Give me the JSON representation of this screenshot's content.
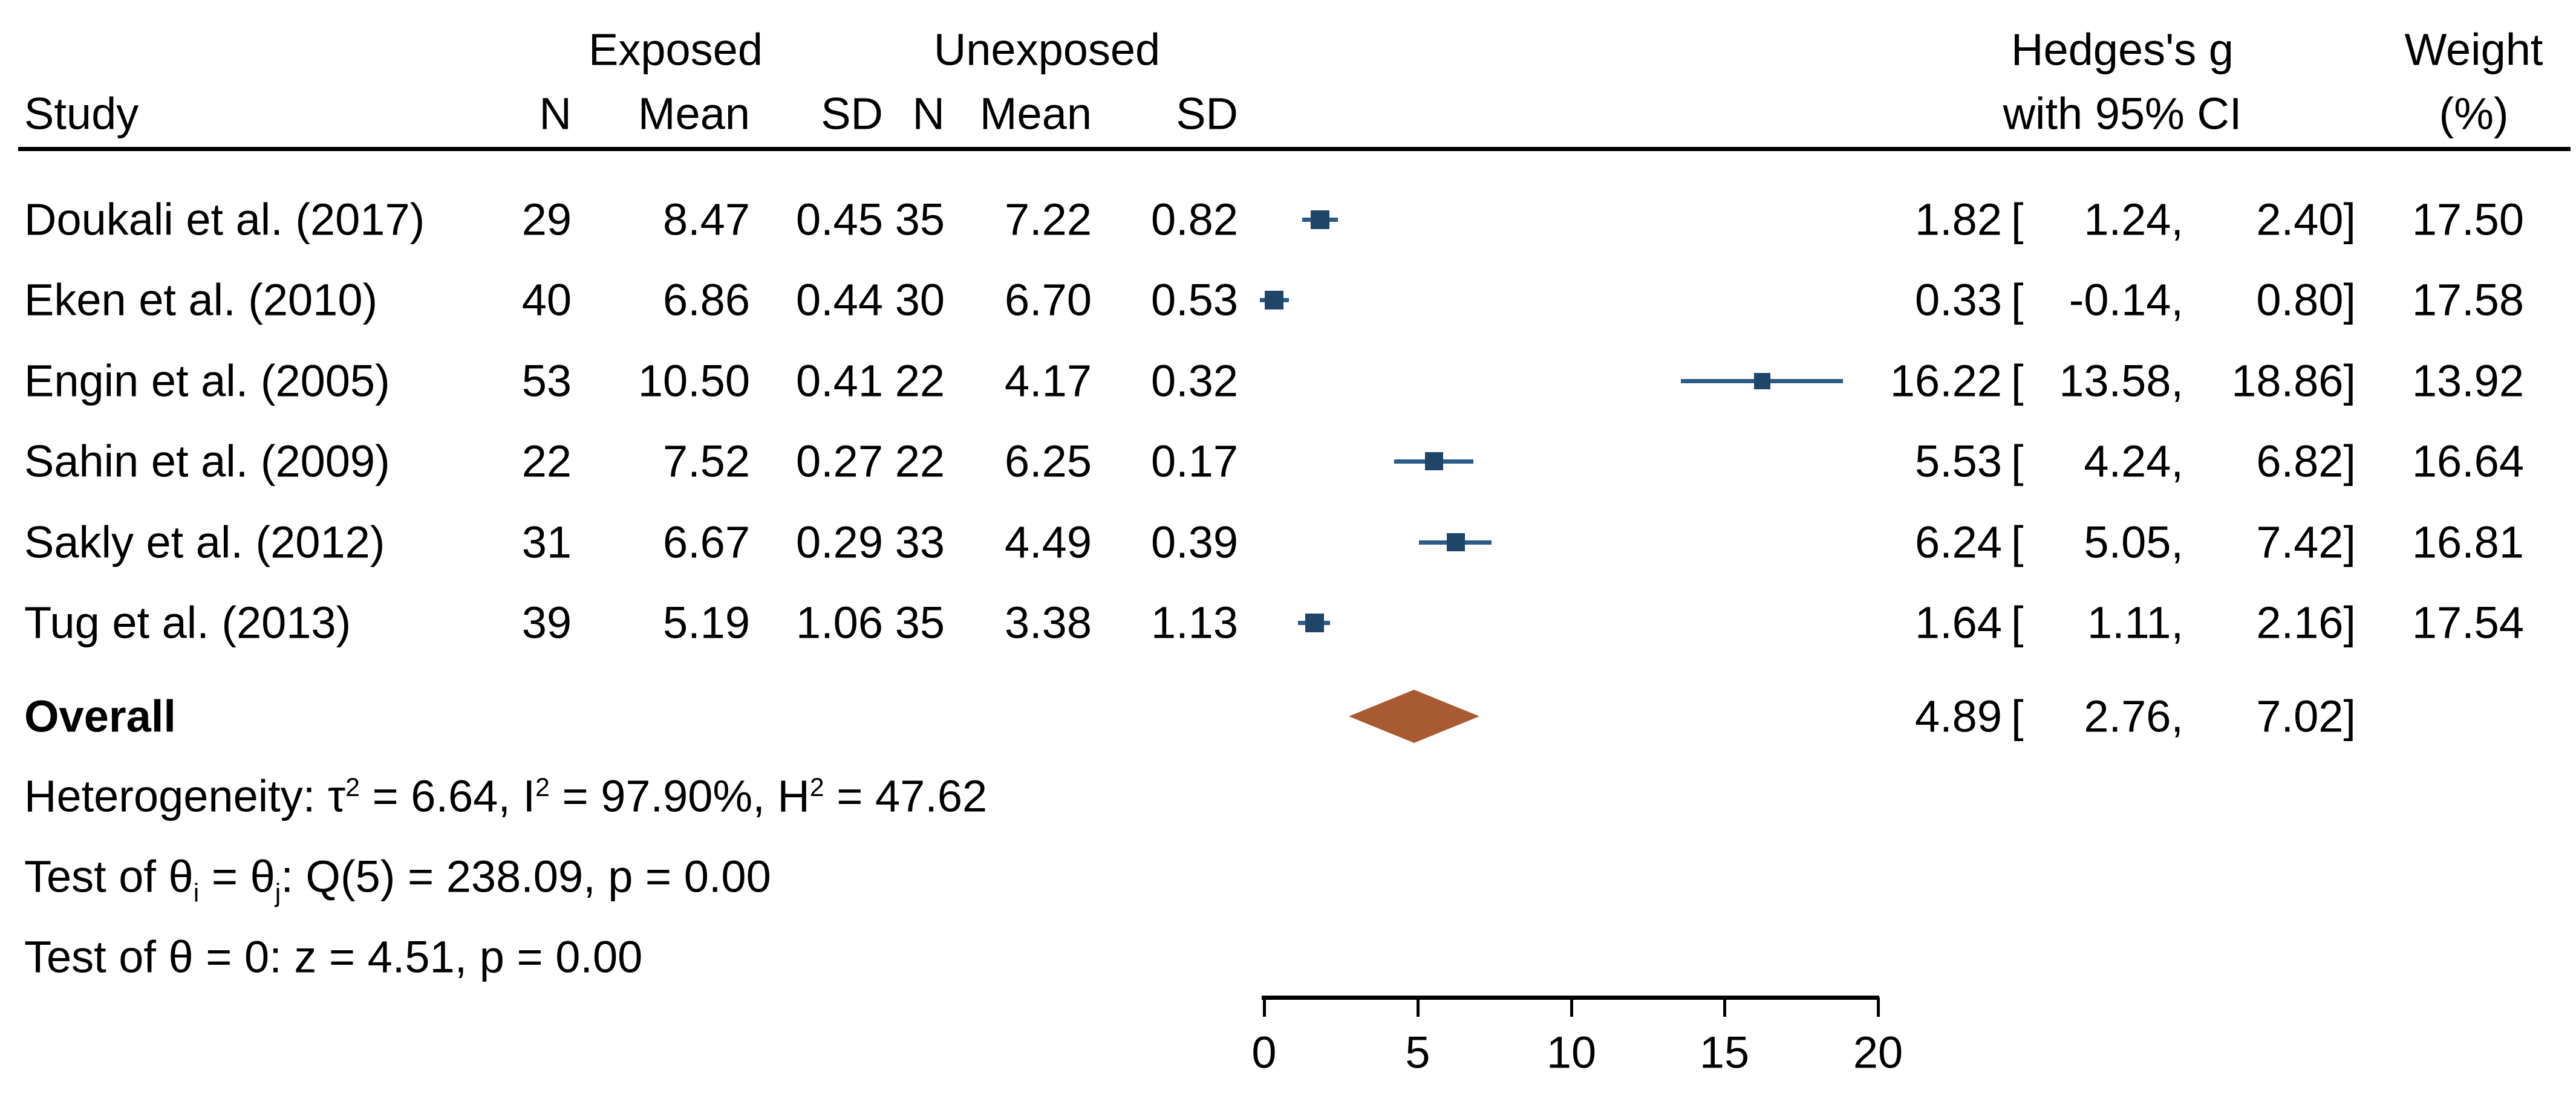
{
  "chart_data": {
    "type": "forest",
    "effect_measure": "Hedges's g",
    "xlim": [
      0,
      20
    ],
    "xticks": [
      "0",
      "5",
      "10",
      "15",
      "20"
    ],
    "ci_open_bracket": "[",
    "ci_separator": ",",
    "ci_close_bracket": "]",
    "columns": {
      "study": "Study",
      "group1": "Exposed",
      "group2": "Unexposed",
      "n": "N",
      "mean": "Mean",
      "sd": "SD",
      "effect_line1": "Hedges's g",
      "effect_line2": "with 95% CI",
      "weight_line1": "Weight",
      "weight_line2": "(%)"
    },
    "studies": [
      {
        "label": "Doukali et al. (2017)",
        "n1": 29,
        "mean1": 8.47,
        "sd1": 0.45,
        "n2": 35,
        "mean2": 7.22,
        "sd2": 0.82,
        "es": 1.82,
        "lo": 1.24,
        "hi": 2.4,
        "weight": 17.5
      },
      {
        "label": "Eken et al. (2010)",
        "n1": 40,
        "mean1": 6.86,
        "sd1": 0.44,
        "n2": 30,
        "mean2": 6.7,
        "sd2": 0.53,
        "es": 0.33,
        "lo": -0.14,
        "hi": 0.8,
        "weight": 17.58
      },
      {
        "label": "Engin et al. (2005)",
        "n1": 53,
        "mean1": 10.5,
        "sd1": 0.41,
        "n2": 22,
        "mean2": 4.17,
        "sd2": 0.32,
        "es": 16.22,
        "lo": 13.58,
        "hi": 18.86,
        "weight": 13.92
      },
      {
        "label": "Sahin et al. (2009)",
        "n1": 22,
        "mean1": 7.52,
        "sd1": 0.27,
        "n2": 22,
        "mean2": 6.25,
        "sd2": 0.17,
        "es": 5.53,
        "lo": 4.24,
        "hi": 6.82,
        "weight": 16.64
      },
      {
        "label": "Sakly et al. (2012)",
        "n1": 31,
        "mean1": 6.67,
        "sd1": 0.29,
        "n2": 33,
        "mean2": 4.49,
        "sd2": 0.39,
        "es": 6.24,
        "lo": 5.05,
        "hi": 7.42,
        "weight": 16.81
      },
      {
        "label": "Tug et al. (2013)",
        "n1": 39,
        "mean1": 5.19,
        "sd1": 1.06,
        "n2": 35,
        "mean2": 3.38,
        "sd2": 1.13,
        "es": 1.64,
        "lo": 1.11,
        "hi": 2.16,
        "weight": 17.54
      }
    ],
    "overall": {
      "label": "Overall",
      "es": 4.89,
      "lo": 2.76,
      "hi": 7.02
    },
    "stats": {
      "heterogeneity": [
        {
          "t": "Heterogeneity: τ"
        },
        {
          "t": "2",
          "s": "sup"
        },
        {
          "t": " = 6.64, I"
        },
        {
          "t": "2",
          "s": "sup"
        },
        {
          "t": " = 97.90%, H"
        },
        {
          "t": "2",
          "s": "sup"
        },
        {
          "t": " = 47.62"
        }
      ],
      "test_between": [
        {
          "t": "Test of θ"
        },
        {
          "t": "i",
          "s": "sub"
        },
        {
          "t": " = θ"
        },
        {
          "t": "j",
          "s": "sub"
        },
        {
          "t": ": Q(5) = 238.09, p = 0.00"
        }
      ],
      "test_overall": [
        {
          "t": "Test of θ = 0: z = 4.51, p = 0.00"
        }
      ]
    },
    "colors": {
      "marker": "#1F4568",
      "ci_line": "#2B5B86",
      "diamond": "#A85A32",
      "text": "#000000",
      "axis": "#000000"
    }
  }
}
